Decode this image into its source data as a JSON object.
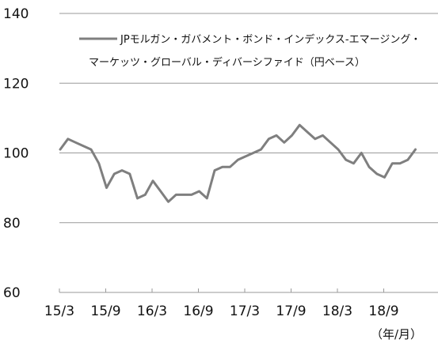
{
  "chart_data": {
    "type": "line",
    "legend": {
      "line1": "JPモルガン・ガバメント・ボンド・インデックス-エマージング・",
      "line2": "マーケッツ・グローバル・ディバーシファイド（円ベース）"
    },
    "x_unit_label": "（年/月）",
    "x_ticks": [
      "15/3",
      "15/9",
      "16/3",
      "16/9",
      "17/3",
      "17/9",
      "18/3",
      "18/9"
    ],
    "ylim": [
      60,
      140
    ],
    "y_ticks": [
      "60",
      "80",
      "100",
      "120",
      "140"
    ],
    "grid": true,
    "line_color": "#7f7f7f",
    "series": [
      {
        "name": "JPモルガン・ガバメント・ボンド・インデックス-エマージング・マーケッツ・グローバル・ディバーシファイド（円ベース）",
        "x": [
          "15/3",
          "15/4",
          "15/5",
          "15/6",
          "15/7",
          "15/8",
          "15/9",
          "15/10",
          "15/11",
          "15/12",
          "16/1",
          "16/2",
          "16/3",
          "16/4",
          "16/5",
          "16/6",
          "16/7",
          "16/8",
          "16/9",
          "16/10",
          "16/11",
          "16/12",
          "17/1",
          "17/2",
          "17/3",
          "17/4",
          "17/5",
          "17/6",
          "17/7",
          "17/8",
          "17/9",
          "17/10",
          "17/11",
          "17/12",
          "18/1",
          "18/2",
          "18/3",
          "18/4",
          "18/5",
          "18/6",
          "18/7",
          "18/8",
          "18/9",
          "18/10",
          "18/11",
          "18/12",
          "19/1"
        ],
        "values": [
          101,
          104,
          103,
          102,
          101,
          97,
          90,
          94,
          95,
          94,
          87,
          88,
          92,
          89,
          86,
          88,
          88,
          88,
          89,
          87,
          95,
          96,
          96,
          98,
          99,
          100,
          101,
          104,
          105,
          103,
          105,
          108,
          106,
          104,
          105,
          103,
          101,
          98,
          97,
          100,
          96,
          94,
          93,
          97,
          97,
          98,
          101
        ]
      }
    ]
  }
}
